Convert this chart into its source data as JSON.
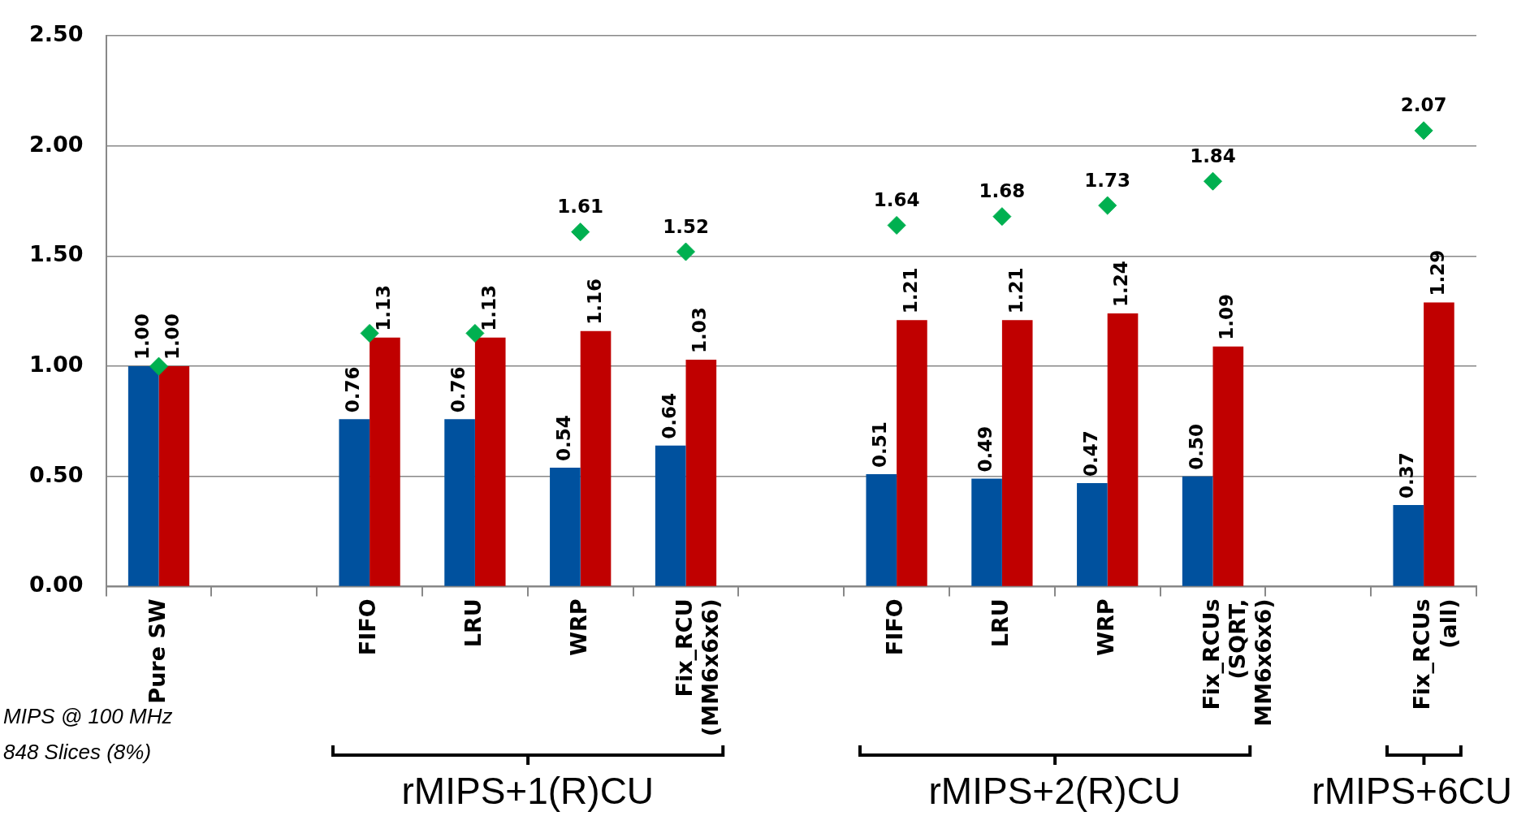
{
  "chart_data": {
    "type": "bar",
    "categories": [
      "Pure SW",
      null,
      "FIFO",
      "LRU",
      "WRP",
      "Fix_RCU\n(MM6x6x6)",
      null,
      "FIFO",
      "LRU",
      "WRP",
      "Fix_RCUs\n(SQRT,\nMM6x6x6)",
      null,
      "Fix_RCUs\n(all)"
    ],
    "series": [
      {
        "color": "#00519e",
        "values": [
          1.0,
          null,
          0.76,
          0.76,
          0.54,
          0.64,
          null,
          0.51,
          0.49,
          0.47,
          0.5,
          null,
          0.37
        ],
        "value_labels": [
          "1.00",
          null,
          "0.76",
          "0.76",
          "0.54",
          "0.64",
          null,
          "0.51",
          "0.49",
          "0.47",
          "0.50",
          null,
          "0.37"
        ]
      },
      {
        "color": "#c00000",
        "values": [
          1.0,
          null,
          1.13,
          1.13,
          1.16,
          1.03,
          null,
          1.21,
          1.21,
          1.24,
          1.09,
          null,
          1.29
        ],
        "value_labels": [
          "1.00",
          null,
          "1.13",
          "1.13",
          "1.16",
          "1.03",
          null,
          "1.21",
          "1.21",
          "1.24",
          "1.09",
          null,
          "1.29"
        ]
      },
      {
        "type": "scatter",
        "color": "#00b050",
        "marker": "diamond",
        "values": [
          1.0,
          null,
          1.15,
          1.15,
          1.61,
          1.52,
          null,
          1.64,
          1.68,
          1.73,
          1.84,
          null,
          2.07
        ],
        "value_labels": [
          null,
          null,
          null,
          null,
          "1.61",
          "1.52",
          null,
          "1.64",
          "1.68",
          "1.73",
          "1.84",
          null,
          "2.07"
        ]
      }
    ],
    "ylim": [
      0,
      2.5
    ],
    "yticks": [
      {
        "value": 0,
        "label": "0.00"
      },
      {
        "value": 0.5,
        "label": "0.50"
      },
      {
        "value": 1,
        "label": "1.00"
      },
      {
        "value": 1.5,
        "label": "1.50"
      },
      {
        "value": 2,
        "label": "2.00"
      },
      {
        "value": 2.5,
        "label": "2.50"
      }
    ],
    "grid": "y",
    "annotations": [
      "rMIPS+1(R)CU",
      "rMIPS+2(R)CU",
      "rMIPS+6CU",
      "MIPS @ 100 MHz",
      "848 Slices (8%)"
    ]
  }
}
